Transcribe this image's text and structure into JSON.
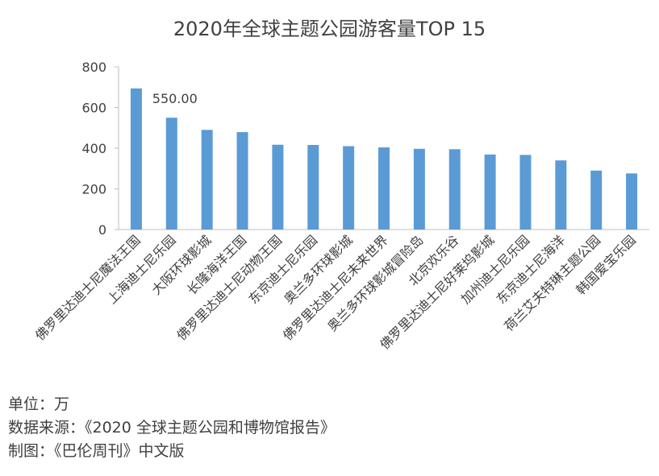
{
  "chart_data": {
    "type": "bar",
    "title": "2020年全球主题公园游客量TOP 15",
    "categories": [
      "佛罗里达迪士尼魔法王国",
      "上海迪士尼乐园",
      "大阪环球影城",
      "长隆海洋王国",
      "佛罗里达迪士尼动物王国",
      "东京迪士尼乐园",
      "奥兰多环球影城",
      "佛罗里达迪士尼未来世界",
      "奥兰多环球影城冒险岛",
      "北京欢乐谷",
      "佛罗里达迪士尼好莱坞影城",
      "加州迪士尼乐园",
      "东京迪士尼海洋",
      "荷兰艾夫特琳主题公园",
      "韩国爱宝乐园"
    ],
    "values": [
      694,
      550,
      490,
      479,
      417,
      416,
      410,
      404,
      397,
      395,
      369,
      367,
      340,
      290,
      276
    ],
    "data_labels": [
      {
        "index": 1,
        "text": "550.00"
      }
    ],
    "ylim": [
      0,
      800
    ],
    "yticks": [
      "0",
      "200",
      "400",
      "600",
      "800"
    ],
    "xlabel": "",
    "ylabel": "",
    "grid": false,
    "bar_color": "#5B9BD5"
  },
  "notes": {
    "unit": "单位：万",
    "source": "数据来源：《2020 全球主题公园和博物馆报告》",
    "credit": "制图：《巴伦周刊》中文版"
  }
}
